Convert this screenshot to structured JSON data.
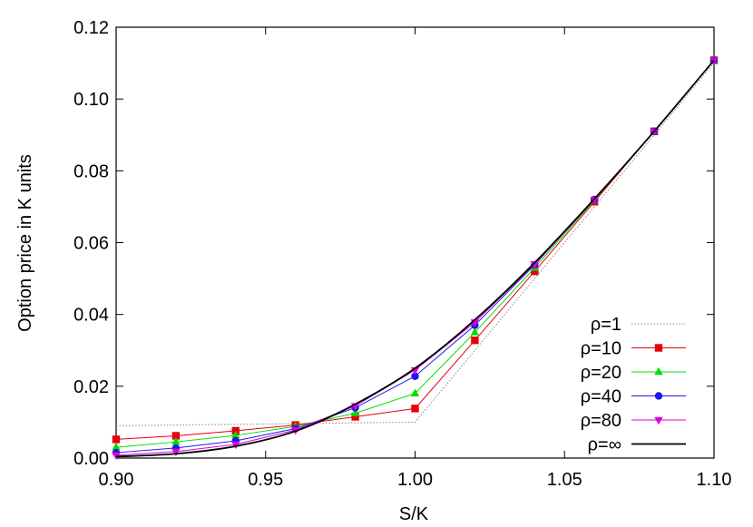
{
  "chart_data": {
    "type": "line",
    "title": "",
    "xlabel": "S/K",
    "ylabel": "Option price in K units",
    "xlim": [
      0.9,
      1.1
    ],
    "ylim": [
      0.0,
      0.12
    ],
    "xticks": [
      0.9,
      0.95,
      1.0,
      1.05,
      1.1
    ],
    "xtick_labels": [
      "0.90",
      "0.95",
      "1.00",
      "1.05",
      "1.10"
    ],
    "yticks": [
      0.0,
      0.02,
      0.04,
      0.06,
      0.08,
      0.1,
      0.12
    ],
    "ytick_labels": [
      "0.00",
      "0.02",
      "0.04",
      "0.06",
      "0.08",
      "0.10",
      "0.12"
    ],
    "grid": false,
    "legend_position": "bottom-right",
    "x": [
      0.9,
      0.92,
      0.94,
      0.96,
      0.98,
      1.0,
      1.02,
      1.04,
      1.06,
      1.08,
      1.1
    ],
    "series": [
      {
        "name": "ρ=1",
        "color": "#888888",
        "marker": "none",
        "dashed": true,
        "values": [
          0.009,
          0.0092,
          0.0094,
          0.0096,
          0.0098,
          0.01,
          0.03,
          0.05,
          0.07,
          0.09,
          0.11
        ]
      },
      {
        "name": "ρ=10",
        "color": "#e8000b",
        "marker": "square",
        "dashed": false,
        "values": [
          0.0052,
          0.0062,
          0.0076,
          0.0092,
          0.0115,
          0.0138,
          0.0328,
          0.052,
          0.0714,
          0.091,
          0.1108
        ]
      },
      {
        "name": "ρ=20",
        "color": "#00dd00",
        "marker": "triangle-up",
        "dashed": false,
        "values": [
          0.003,
          0.0045,
          0.0063,
          0.0088,
          0.0125,
          0.018,
          0.035,
          0.053,
          0.0718,
          0.091,
          0.1108
        ]
      },
      {
        "name": "ρ=40",
        "color": "#1a1aee",
        "marker": "circle",
        "dashed": false,
        "values": [
          0.0015,
          0.0028,
          0.0048,
          0.0082,
          0.014,
          0.0228,
          0.037,
          0.0538,
          0.072,
          0.091,
          0.1108
        ]
      },
      {
        "name": "ρ=80",
        "color": "#dd00dd",
        "marker": "triangle-down",
        "dashed": false,
        "values": [
          0.0008,
          0.0018,
          0.0038,
          0.0078,
          0.0145,
          0.0245,
          0.0378,
          0.054,
          0.072,
          0.091,
          0.1108
        ]
      },
      {
        "name": "ρ=∞",
        "color": "#000000",
        "marker": "none",
        "dashed": false,
        "smooth": true,
        "values": [
          0.0004,
          0.0012,
          0.0033,
          0.0075,
          0.015,
          0.025,
          0.0385,
          0.0544,
          0.0722,
          0.091,
          0.1108
        ]
      }
    ]
  }
}
